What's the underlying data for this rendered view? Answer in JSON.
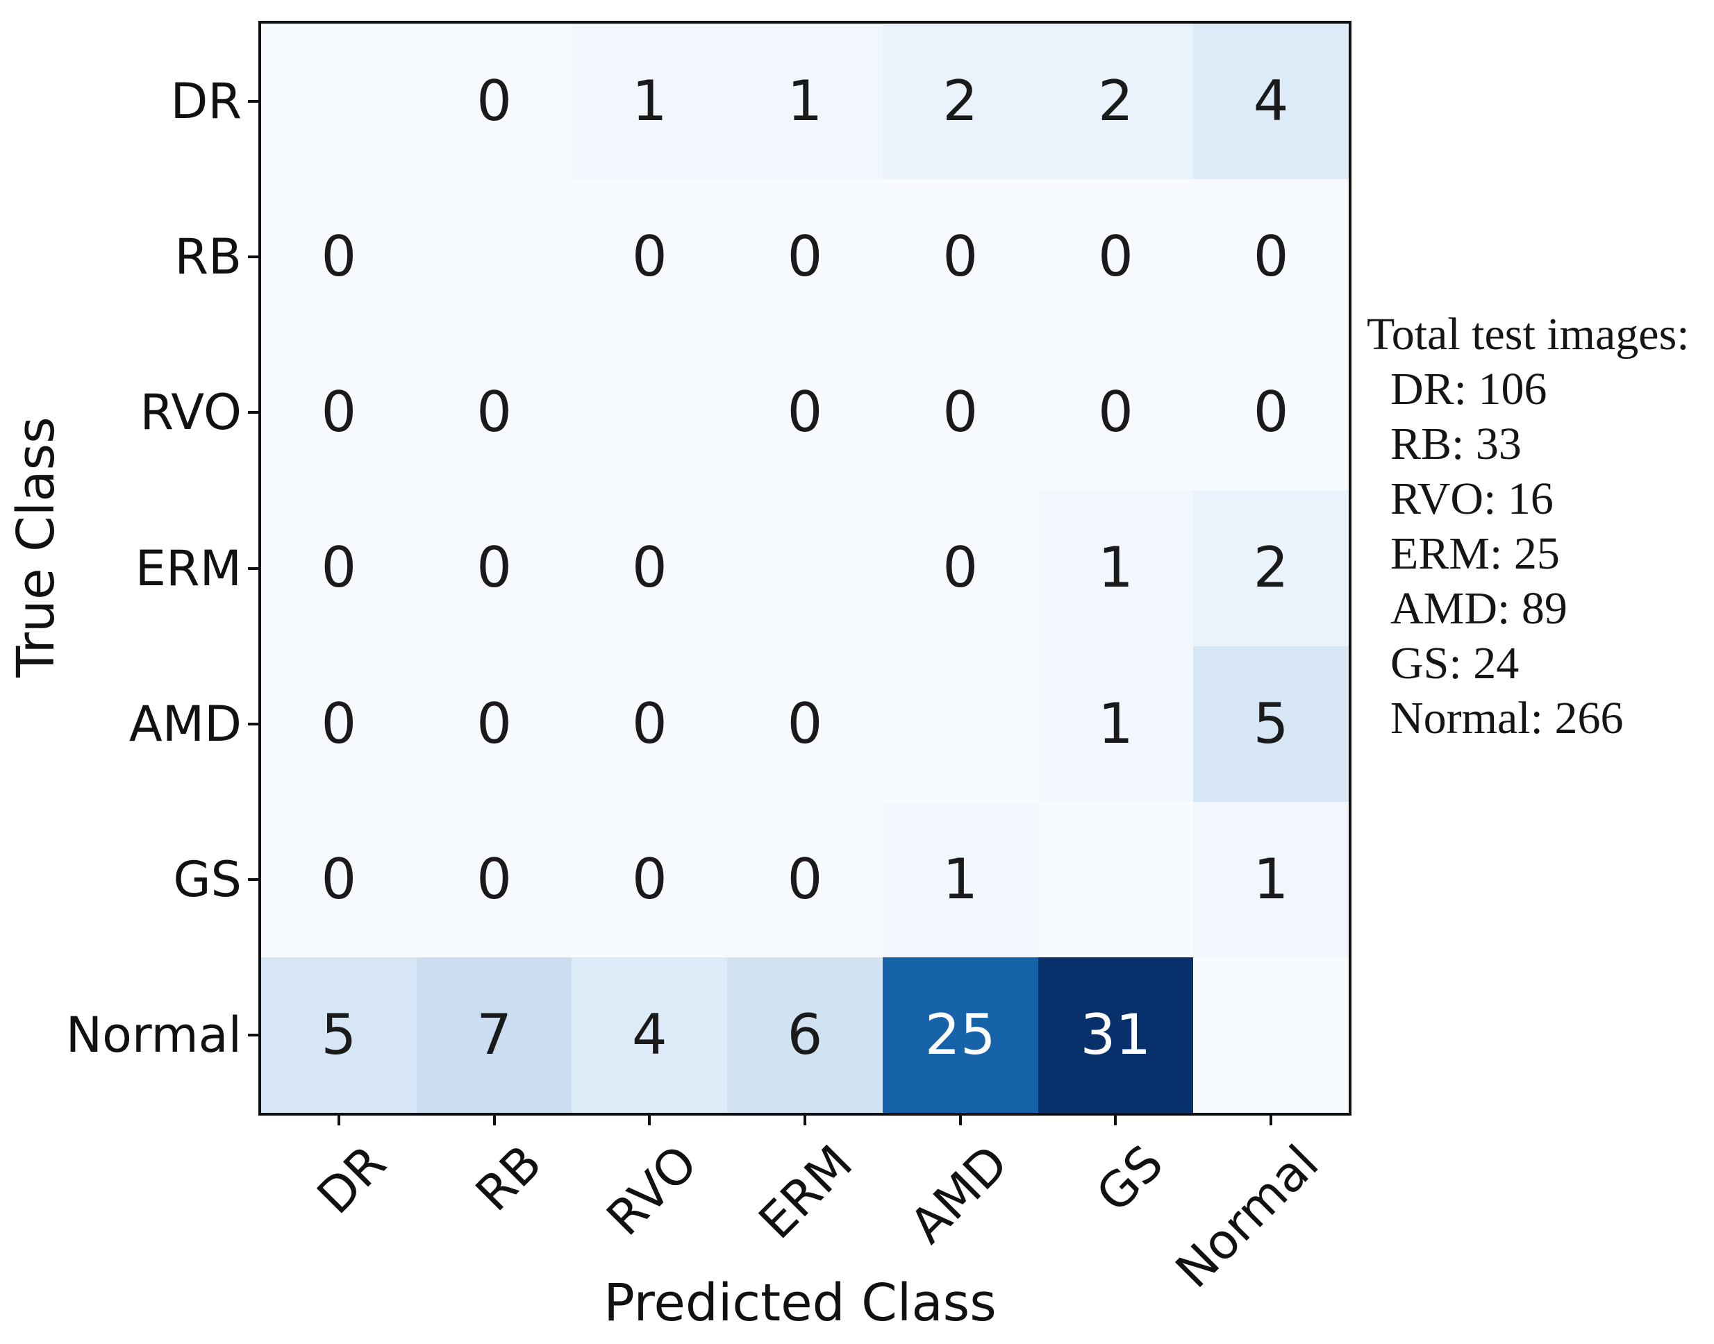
{
  "chart_data": {
    "type": "heatmap",
    "xlabel": "Predicted Class",
    "ylabel": "True Class",
    "categories": [
      "DR",
      "RB",
      "RVO",
      "ERM",
      "AMD",
      "GS",
      "Normal"
    ],
    "matrix": [
      [
        null,
        0,
        1,
        1,
        2,
        2,
        4
      ],
      [
        0,
        null,
        0,
        0,
        0,
        0,
        0
      ],
      [
        0,
        0,
        null,
        0,
        0,
        0,
        0
      ],
      [
        0,
        0,
        0,
        null,
        0,
        1,
        2
      ],
      [
        0,
        0,
        0,
        0,
        null,
        1,
        5
      ],
      [
        0,
        0,
        0,
        0,
        1,
        null,
        1
      ],
      [
        5,
        7,
        4,
        6,
        25,
        31,
        null
      ]
    ],
    "blank_diagonal": true,
    "vmin": 0,
    "vmax": 31,
    "colormap": "Blues",
    "colormap_stops": [
      "#f7fbff",
      "#deebf7",
      "#c6dbef",
      "#9ecae1",
      "#6baed6",
      "#4292c6",
      "#2171b5",
      "#08519c",
      "#08306b"
    ],
    "legend_position": "none",
    "grid": false
  },
  "colors": {
    "background": "#ffffff",
    "spine": "#101010",
    "tick": "#101010",
    "label_text": "#111111",
    "cell_text_dark": "#1a1a1a",
    "cell_text_light": "#ffffff"
  },
  "annotation": {
    "title": "Total test images:",
    "lines": [
      "DR: 106",
      "RB: 33",
      "RVO: 16",
      "ERM: 25",
      "AMD: 89",
      "GS: 24",
      "Normal: 266"
    ]
  }
}
